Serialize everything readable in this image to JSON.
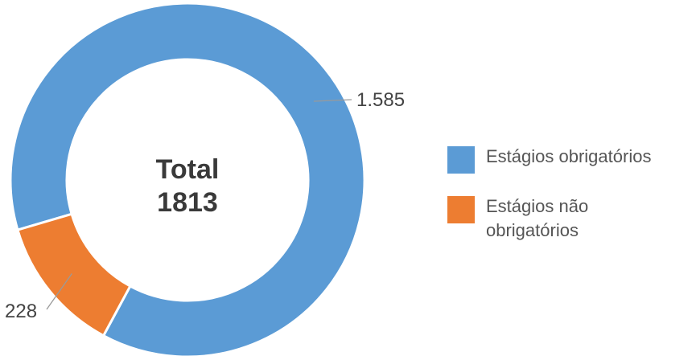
{
  "chart_data": {
    "type": "pie",
    "donut": true,
    "center_title": "Total",
    "center_value": "1813",
    "slices": [
      {
        "name": "Estágios obrigatórios",
        "value": 1585,
        "label": "1.585",
        "color": "#5b9bd5"
      },
      {
        "name": "Estágios não obrigatórios",
        "value": 228,
        "label": "228",
        "color": "#ed7d31"
      }
    ],
    "legend_position": "right"
  }
}
